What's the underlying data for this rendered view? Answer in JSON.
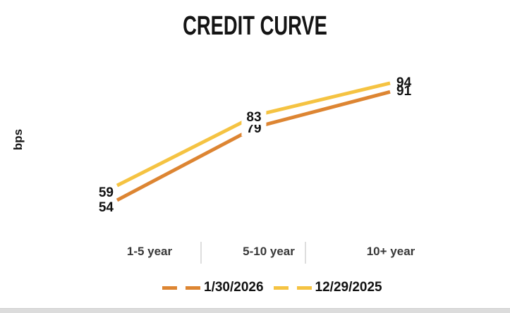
{
  "chart_data": {
    "type": "line",
    "title": "CREDIT CURVE",
    "ylabel": "bps",
    "categories": [
      "1-5 year",
      "5-10 year",
      "10+ year"
    ],
    "series": [
      {
        "name": "1/30/2026",
        "values": [
          54,
          79,
          91
        ],
        "color": "#DD8532"
      },
      {
        "name": "12/29/2025",
        "values": [
          59,
          83,
          94
        ],
        "color": "#F5C342"
      }
    ],
    "data_labels": true,
    "legend_position": "bottom",
    "grid": false,
    "ylim_implied": [
      50,
      100
    ]
  },
  "colors": {
    "background": "#FFFFFF",
    "title_text": "#141414",
    "axis_text": "#383838",
    "category_separator": "#DEDEDE",
    "bottom_bar": "#DCDCDC",
    "series_orange": "#DD8532",
    "series_yellow": "#F5C342"
  }
}
